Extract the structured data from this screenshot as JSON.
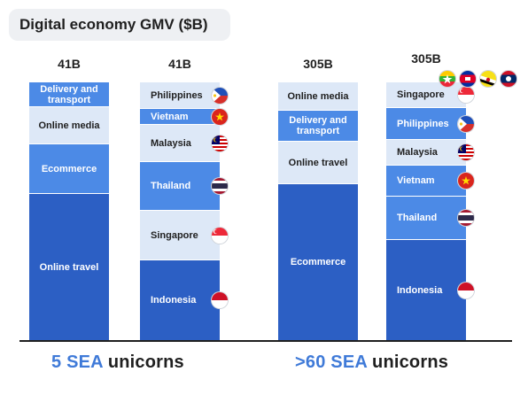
{
  "header": {
    "title": "Digital economy GMV ($B)"
  },
  "groups": [
    {
      "prefix": "5 SEA",
      "suffix": " unicorns"
    },
    {
      "prefix": ">60 SEA",
      "suffix": " unicorns"
    }
  ],
  "colors": {
    "light": "#dde8f7",
    "mid": "#4c8ae6",
    "dark": "#2c5fc4",
    "label_dark": "#1f1f1f",
    "label_light": "#ffffff"
  },
  "chart_data": {
    "type": "bar",
    "stacked": true,
    "normalized": true,
    "title": "Digital economy GMV ($B)",
    "bars": [
      {
        "total_label": "41B",
        "segments": [
          {
            "label": "Delivery and transport",
            "share": 0.095,
            "shade": "mid"
          },
          {
            "label": "Online media",
            "share": 0.145,
            "shade": "light"
          },
          {
            "label": "Ecommerce",
            "share": 0.193,
            "shade": "mid"
          },
          {
            "label": "Online travel",
            "share": 0.567,
            "shade": "dark"
          }
        ]
      },
      {
        "total_label": "41B",
        "segments": [
          {
            "label": "Philippines",
            "share": 0.104,
            "shade": "light",
            "flag": "philippines-flag"
          },
          {
            "label": "Vietnam",
            "share": 0.063,
            "shade": "mid",
            "flag": "vietnam-flag"
          },
          {
            "label": "Malaysia",
            "share": 0.145,
            "shade": "light",
            "flag": "malaysia-flag"
          },
          {
            "label": "Thailand",
            "share": 0.19,
            "shade": "mid",
            "flag": "thailand-flag"
          },
          {
            "label": "Singapore",
            "share": 0.193,
            "shade": "light",
            "flag": "singapore-flag"
          },
          {
            "label": "Indonesia",
            "share": 0.305,
            "shade": "dark",
            "flag": "indonesia-flag"
          }
        ]
      },
      {
        "total_label": "305B",
        "segments": [
          {
            "label": "Online media",
            "share": 0.111,
            "shade": "light"
          },
          {
            "label": "Delivery and transport",
            "share": 0.12,
            "shade": "mid"
          },
          {
            "label": "Online travel",
            "share": 0.164,
            "shade": "light"
          },
          {
            "label": "Ecommerce",
            "share": 0.605,
            "shade": "dark"
          }
        ]
      },
      {
        "total_label": "305B",
        "segments": [
          {
            "label": "Singapore",
            "share": 0.098,
            "shade": "light",
            "flag": "singapore-flag"
          },
          {
            "label": "Philippines",
            "share": 0.122,
            "shade": "mid",
            "flag": "philippines-flag"
          },
          {
            "label": "Malaysia",
            "share": 0.098,
            "shade": "light",
            "flag": "malaysia-flag"
          },
          {
            "label": "Vietnam",
            "share": 0.119,
            "shade": "mid",
            "flag": "vietnam-flag"
          },
          {
            "label": "Thailand",
            "share": 0.168,
            "shade": "mid",
            "flag": "thailand-flag"
          },
          {
            "label": "Indonesia",
            "share": 0.395,
            "shade": "dark",
            "flag": "indonesia-flag"
          }
        ]
      }
    ],
    "extra_flags": [
      "myanmar-flag",
      "cambodia-flag",
      "brunei-flag",
      "laos-flag"
    ]
  }
}
